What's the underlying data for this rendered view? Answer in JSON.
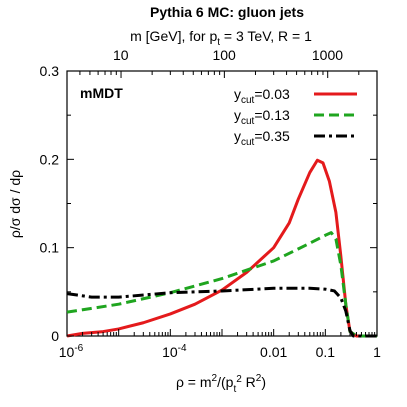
{
  "chart_data": {
    "type": "line",
    "title": "Pythia 6 MC: gluon jets",
    "top_axis": {
      "label_parts": [
        "m [GeV], for p",
        "t",
        " = 3 TeV, R = 1"
      ],
      "ticks": [
        {
          "label": "10",
          "rho": 1.1e-05
        },
        {
          "label": "100",
          "rho": 0.0011
        },
        {
          "label": "1000",
          "rho": 0.11
        }
      ]
    },
    "xlabel_parts": [
      "ρ = m",
      "2",
      "/(p",
      "t",
      "2",
      " R",
      "2",
      ")"
    ],
    "ylabel": "ρ/σ dσ / dρ",
    "x_scale": "log",
    "xlim": [
      1e-06,
      1
    ],
    "ylim": [
      0,
      0.3
    ],
    "x_ticks": [
      {
        "value": 1e-06,
        "base": "10",
        "exp": "-6"
      },
      {
        "value": 0.0001,
        "base": "10",
        "exp": "-4"
      },
      {
        "value": 0.01,
        "label": "0.01"
      },
      {
        "value": 0.1,
        "label": "0.1"
      },
      {
        "value": 1,
        "label": "1"
      }
    ],
    "y_ticks": [
      {
        "value": 0,
        "label": "0"
      },
      {
        "value": 0.1,
        "label": "0.1"
      },
      {
        "value": 0.2,
        "label": "0.2"
      },
      {
        "value": 0.3,
        "label": "0.3"
      }
    ],
    "annotation": "mMDT",
    "legend_position": "top-right",
    "series": [
      {
        "name": "y_cut=0.03",
        "name_parts": [
          "y",
          "cut",
          "=0.03"
        ],
        "color": "#e41a1c",
        "dash": "solid",
        "points": [
          [
            1e-06,
            0.0
          ],
          [
            2e-06,
            0.003
          ],
          [
            5e-06,
            0.005
          ],
          [
            1e-05,
            0.008
          ],
          [
            3e-05,
            0.015
          ],
          [
            0.0001,
            0.025
          ],
          [
            0.0003,
            0.036
          ],
          [
            0.001,
            0.052
          ],
          [
            0.003,
            0.072
          ],
          [
            0.01,
            0.1
          ],
          [
            0.02,
            0.128
          ],
          [
            0.03,
            0.155
          ],
          [
            0.05,
            0.185
          ],
          [
            0.07,
            0.199
          ],
          [
            0.09,
            0.196
          ],
          [
            0.12,
            0.175
          ],
          [
            0.16,
            0.14
          ],
          [
            0.2,
            0.09
          ],
          [
            0.25,
            0.035
          ],
          [
            0.3,
            0.005
          ],
          [
            0.4,
            0.0
          ],
          [
            1,
            0.0
          ]
        ]
      },
      {
        "name": "y_cut=0.13",
        "name_parts": [
          "y",
          "cut",
          "=0.13"
        ],
        "color": "#1fa51f",
        "dash": "dashed",
        "points": [
          [
            1e-06,
            0.027
          ],
          [
            1e-05,
            0.036
          ],
          [
            0.0001,
            0.049
          ],
          [
            0.001,
            0.065
          ],
          [
            0.01,
            0.085
          ],
          [
            0.05,
            0.105
          ],
          [
            0.1,
            0.114
          ],
          [
            0.13,
            0.117
          ],
          [
            0.16,
            0.11
          ],
          [
            0.2,
            0.08
          ],
          [
            0.25,
            0.035
          ],
          [
            0.3,
            0.005
          ],
          [
            0.4,
            0.0
          ],
          [
            1,
            0.0
          ]
        ]
      },
      {
        "name": "y_cut=0.35",
        "name_parts": [
          "y",
          "cut",
          "=0.35"
        ],
        "color": "#000000",
        "dash": "dashdot",
        "points": [
          [
            1e-06,
            0.048
          ],
          [
            3e-06,
            0.044
          ],
          [
            1e-05,
            0.044
          ],
          [
            0.0001,
            0.049
          ],
          [
            0.001,
            0.051
          ],
          [
            0.01,
            0.054
          ],
          [
            0.05,
            0.054
          ],
          [
            0.1,
            0.053
          ],
          [
            0.15,
            0.051
          ],
          [
            0.2,
            0.043
          ],
          [
            0.25,
            0.028
          ],
          [
            0.3,
            0.006
          ],
          [
            0.35,
            0.0
          ],
          [
            1,
            0.0
          ]
        ]
      }
    ]
  }
}
